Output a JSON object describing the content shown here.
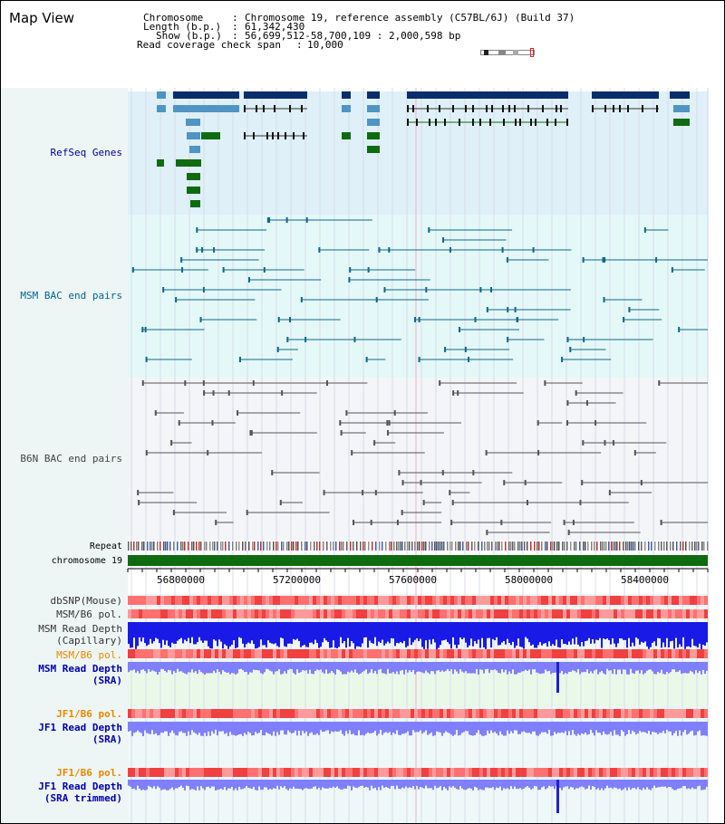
{
  "page": {
    "title": "Map View"
  },
  "info": {
    "chromosome_label": "Chromosome",
    "chromosome_value": "Chromosome 19, reference assembly (C57BL/6J) (Build 37)",
    "length_label": "Length (b.p.)",
    "length_value": "61,342,430",
    "show_label": "Show (b.p.)",
    "show_value": "56,699,512-58,700,109 : 2,000,598 bp",
    "coverage_label": "Read coverage check span",
    "coverage_value": "10,000"
  },
  "tracks": [
    {
      "name": "refseq-genes-label",
      "label": "RefSeq Genes",
      "color": "#000099"
    },
    {
      "name": "msm-bac-label",
      "label": "MSM BAC end pairs",
      "color": "#006688"
    },
    {
      "name": "b6n-bac-label",
      "label": "B6N BAC end pairs",
      "color": "#444444"
    },
    {
      "name": "repeat-label",
      "label": "Repeat",
      "color": "#000000"
    },
    {
      "name": "chromosome-label",
      "label": "chromosome 19",
      "color": "#000000"
    },
    {
      "name": "dbsnp-label",
      "label": "dbSNP(Mouse)",
      "color": "#333333"
    },
    {
      "name": "msm-b6-pol-label-1",
      "label": "MSM/B6 pol.",
      "color": "#333333"
    },
    {
      "name": "msm-read-depth-cap-label",
      "label": "MSM Read Depth\n(Capillary)",
      "color": "#333333"
    },
    {
      "name": "msm-b6-pol-label-2",
      "label": "MSM/B6 pol.",
      "color": "#e68a00"
    },
    {
      "name": "msm-read-depth-sra-label",
      "label": "MSM Read Depth\n(SRA)",
      "color": "#0000aa"
    },
    {
      "name": "jf1-b6-pol-label-1",
      "label": "JF1/B6 pol.",
      "color": "#e68a00"
    },
    {
      "name": "jf1-read-depth-sra-label",
      "label": "JF1 Read Depth\n(SRA)",
      "color": "#0000aa"
    },
    {
      "name": "jf1-b6-pol-label-2",
      "label": "JF1/B6 pol.",
      "color": "#e68a00"
    },
    {
      "name": "jf1-read-depth-trim-label",
      "label": "JF1 Read Depth\n(SRA trimmed)",
      "color": "#0000aa"
    }
  ],
  "ruler": {
    "ticks": [
      "56800000",
      "57200000",
      "57600000",
      "58000000",
      "58400000"
    ]
  },
  "colors": {
    "refseq_bg": "#dff0f8",
    "msm_bg": "#e4f8f8",
    "b6n_bg": "#f3f5f8",
    "gene_dark": "#0a2d6b",
    "gene_light": "#4f94c2",
    "gene_green": "#0f6b10",
    "msm_line": "#106888",
    "b6n_line": "#555555",
    "chromosome_bar": "#0f6b10",
    "read_depth": "#1a1ae6",
    "read_depth_sra": "#8080ff",
    "pol_red": "#ff6060"
  }
}
